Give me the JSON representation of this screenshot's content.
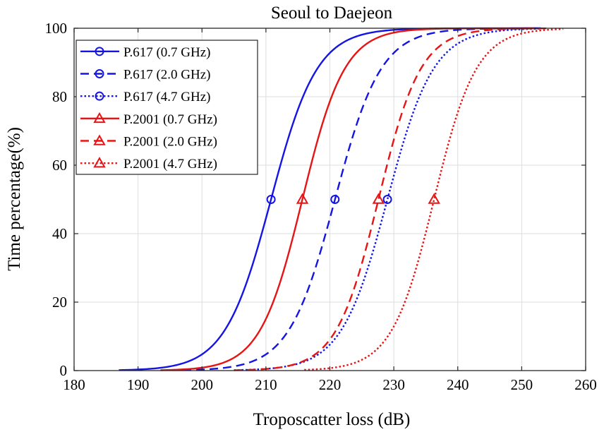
{
  "chart_data": {
    "type": "line",
    "title": "Seoul to Daejeon",
    "xlabel": "Troposcatter loss (dB)",
    "ylabel": "Time percentage(%)",
    "xlim": [
      180,
      260
    ],
    "ylim": [
      0,
      100
    ],
    "xticks": [
      "180",
      "190",
      "200",
      "210",
      "220",
      "230",
      "240",
      "250",
      "260"
    ],
    "yticks": [
      "0",
      "20",
      "40",
      "60",
      "80",
      "100"
    ],
    "grid": true,
    "legend_position": "top-left",
    "series": [
      {
        "name": "P.617 (0.7 GHz)",
        "color": "#1414E6",
        "dash": "solid",
        "marker": "circle",
        "x_range": [
          187,
          253
        ],
        "median": 210.8,
        "spread": 3.6,
        "marker_point": [
          210.8,
          50
        ]
      },
      {
        "name": "P.617 (2.0 GHz)",
        "color": "#1414E6",
        "dash": "dashed",
        "marker": "circle",
        "x_range": [
          197,
          253
        ],
        "median": 220.8,
        "spread": 3.6,
        "marker_point": [
          220.8,
          50
        ]
      },
      {
        "name": "P.617 (4.7 GHz)",
        "color": "#1414E6",
        "dash": "dotted",
        "marker": "circle",
        "x_range": [
          205,
          253
        ],
        "median": 229.0,
        "spread": 3.6,
        "marker_point": [
          229.0,
          50
        ]
      },
      {
        "name": "P.2001 (0.7 GHz)",
        "color": "#E61414",
        "dash": "solid",
        "marker": "triangle",
        "x_range": [
          193.5,
          252
        ],
        "median": 215.7,
        "spread": 3.3,
        "marker_point": [
          215.7,
          50
        ]
      },
      {
        "name": "P.2001 (2.0 GHz)",
        "color": "#E61414",
        "dash": "dashed",
        "marker": "triangle",
        "x_range": [
          205,
          254
        ],
        "median": 227.6,
        "spread": 3.3,
        "marker_point": [
          227.6,
          50
        ]
      },
      {
        "name": "P.2001 (4.7 GHz)",
        "color": "#E61414",
        "dash": "dotted",
        "marker": "triangle",
        "x_range": [
          216,
          256.5
        ],
        "median": 236.3,
        "spread": 3.3,
        "marker_point": [
          236.3,
          50
        ]
      }
    ]
  }
}
